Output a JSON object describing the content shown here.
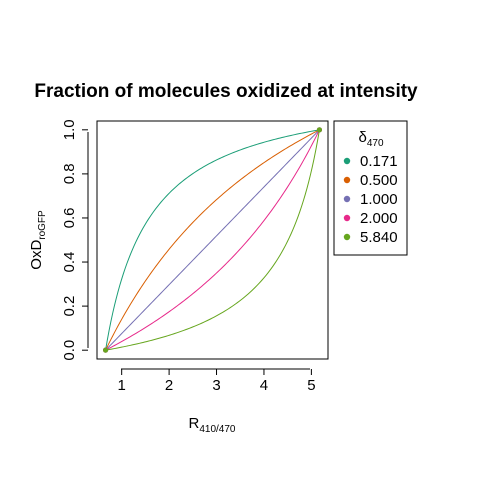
{
  "chart_data": {
    "type": "line",
    "title": "Fraction of molecules oxidized at intensity",
    "ylabel": {
      "main": "OxD",
      "sub": "roGFP"
    },
    "xlabel": {
      "main": "R",
      "sub": "410/470"
    },
    "xlim": [
      0.66,
      5.17
    ],
    "ylim": [
      0,
      1
    ],
    "x_ticks": [
      1,
      2,
      3,
      4,
      5
    ],
    "y_ticks": [
      0.0,
      0.2,
      0.4,
      0.6,
      0.8,
      1.0
    ],
    "x_tick_labels": [
      "1",
      "2",
      "3",
      "4",
      "5"
    ],
    "y_tick_labels": [
      "0.0",
      "0.2",
      "0.4",
      "0.6",
      "0.8",
      "1.0"
    ],
    "x_range": [
      0.66,
      5.17
    ],
    "legend": {
      "title_main": "δ",
      "title_sub": "470",
      "position": "right",
      "labels": [
        "0.171",
        "0.500",
        "1.000",
        "2.000",
        "5.840"
      ]
    },
    "series": [
      {
        "name": "0.171",
        "delta": 0.171,
        "color": "#1B9E77"
      },
      {
        "name": "0.500",
        "delta": 0.5,
        "color": "#D95F02"
      },
      {
        "name": "1.000",
        "delta": 1.0,
        "color": "#7570B3"
      },
      {
        "name": "2.000",
        "delta": 2.0,
        "color": "#E7298A"
      },
      {
        "name": "5.840",
        "delta": 5.84,
        "color": "#66A61E"
      }
    ]
  }
}
